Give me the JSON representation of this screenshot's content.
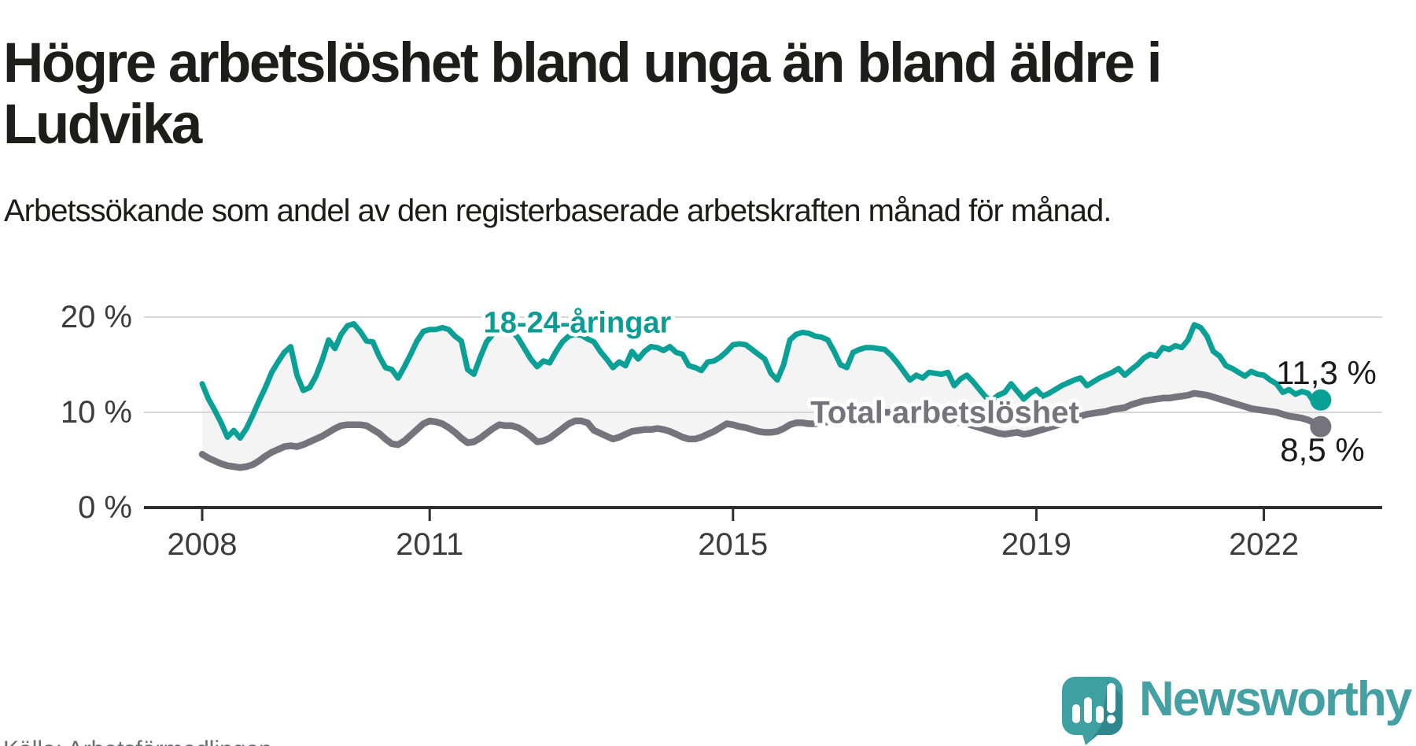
{
  "title": "Högre arbetslöshet bland unga än bland äldre i Ludvika",
  "subtitle": "Arbetssökande som andel av den registerbaserade arbetskraften månad för månad.",
  "source": "Källa: Arbetsförmedlingen",
  "logo": {
    "brand": "Newsworthy",
    "icon": "newsworthy-speech-bubble-bar-chart-icon"
  },
  "colors": {
    "young_line": "#0aa096",
    "young_label": "#0b9d93",
    "total_line": "#75747d",
    "band_fill": "#f4f4f4",
    "gridline": "#d7d7d7",
    "axis": "#2e2e2e",
    "tick_text": "#3c3c3c",
    "text": "#1d1d1b",
    "source_text": "#6c6c75",
    "logo_teal": "#3fa0a1",
    "logo_dark": "#2e878c",
    "wordmark": "#44a0a2"
  },
  "chart_data": {
    "type": "line",
    "title": "Högre arbetslöshet bland unga än bland äldre i Ludvika",
    "subtitle": "Arbetssökande som andel av den registerbaserade arbetskraften månad för månad.",
    "unit": "%",
    "x_start": 2008.0,
    "x_end": 2022.75,
    "x_step_months": 1,
    "xticks": [
      2008,
      2011,
      2015,
      2019,
      2022
    ],
    "yticks": [
      0,
      10,
      20
    ],
    "ytick_labels": [
      "0 %",
      "10 %",
      "20 %"
    ],
    "ylim": [
      0,
      21.5
    ],
    "grid": "horizontal",
    "legend_position": "inline-labels",
    "series": [
      {
        "name": "18-24-åringar",
        "color": "#0aa096",
        "end_label": "11,3 %",
        "end_value": 11.3,
        "values": [
          13.0,
          11.4,
          10.2,
          8.9,
          7.4,
          8.1,
          7.3,
          8.3,
          9.7,
          11.2,
          12.6,
          14.2,
          15.3,
          16.3,
          16.9,
          13.9,
          12.3,
          12.6,
          13.8,
          15.5,
          17.6,
          16.7,
          18.2,
          19.1,
          19.3,
          18.5,
          17.5,
          17.4,
          15.9,
          14.7,
          14.5,
          13.6,
          14.8,
          16.1,
          17.5,
          18.5,
          18.7,
          18.7,
          18.9,
          18.7,
          18.0,
          17.5,
          14.5,
          14.0,
          15.8,
          17.4,
          18.2,
          18.9,
          18.8,
          18.6,
          17.8,
          16.7,
          15.6,
          14.8,
          15.4,
          15.2,
          16.4,
          17.4,
          18.0,
          18.2,
          18.1,
          17.7,
          17.4,
          16.4,
          15.6,
          14.7,
          15.3,
          14.9,
          16.4,
          15.6,
          16.4,
          16.9,
          16.8,
          16.5,
          16.9,
          16.3,
          16.1,
          14.9,
          14.7,
          14.4,
          15.3,
          15.4,
          15.8,
          16.4,
          17.1,
          17.2,
          17.1,
          16.6,
          16.1,
          15.6,
          14.1,
          13.4,
          15.0,
          17.6,
          18.2,
          18.4,
          18.3,
          18.0,
          17.9,
          17.6,
          16.4,
          15.0,
          14.7,
          16.3,
          16.6,
          16.8,
          16.8,
          16.7,
          16.6,
          16.0,
          15.2,
          14.3,
          13.4,
          13.9,
          13.6,
          14.2,
          14.1,
          14.0,
          14.2,
          12.8,
          13.5,
          13.9,
          13.2,
          12.4,
          11.6,
          11.3,
          11.8,
          12.1,
          13.0,
          12.2,
          11.4,
          12.0,
          12.4,
          11.7,
          12.0,
          12.4,
          12.8,
          13.1,
          13.4,
          13.6,
          12.8,
          13.2,
          13.6,
          13.9,
          14.2,
          14.6,
          13.9,
          14.5,
          15.0,
          15.7,
          16.1,
          15.9,
          16.8,
          16.6,
          17.0,
          16.8,
          17.6,
          19.2,
          18.9,
          18.0,
          16.4,
          15.9,
          14.9,
          14.6,
          14.2,
          13.8,
          14.3,
          14.0,
          13.9,
          13.4,
          13.0,
          12.1,
          12.4,
          11.9,
          12.2,
          12.0,
          11.0,
          11.3
        ]
      },
      {
        "name": "Total arbetslöshet",
        "color": "#75747d",
        "end_label": "8,5 %",
        "end_value": 8.5,
        "values": [
          5.6,
          5.2,
          4.9,
          4.6,
          4.4,
          4.3,
          4.2,
          4.3,
          4.5,
          4.9,
          5.4,
          5.8,
          6.1,
          6.4,
          6.5,
          6.4,
          6.6,
          6.9,
          7.2,
          7.5,
          7.9,
          8.3,
          8.6,
          8.7,
          8.7,
          8.7,
          8.6,
          8.2,
          7.8,
          7.2,
          6.7,
          6.6,
          7.0,
          7.6,
          8.2,
          8.8,
          9.1,
          9.0,
          8.8,
          8.4,
          7.9,
          7.3,
          6.8,
          6.9,
          7.3,
          7.8,
          8.3,
          8.7,
          8.6,
          8.6,
          8.4,
          8.0,
          7.5,
          6.9,
          7.0,
          7.3,
          7.8,
          8.3,
          8.8,
          9.1,
          9.1,
          8.9,
          8.1,
          7.8,
          7.5,
          7.2,
          7.4,
          7.7,
          8.0,
          8.1,
          8.2,
          8.2,
          8.3,
          8.2,
          8.0,
          7.7,
          7.4,
          7.2,
          7.2,
          7.4,
          7.7,
          8.0,
          8.4,
          8.8,
          8.7,
          8.5,
          8.4,
          8.2,
          8.0,
          7.9,
          7.9,
          8.0,
          8.3,
          8.7,
          8.9,
          8.9,
          8.8,
          8.8,
          8.9,
          9.0,
          9.2,
          9.4,
          9.5,
          9.6,
          9.7,
          9.8,
          9.9,
          10.0,
          10.0,
          10.0,
          9.9,
          9.8,
          9.6,
          9.5,
          9.4,
          9.4,
          9.3,
          9.2,
          9.1,
          9.0,
          8.9,
          8.8,
          8.6,
          8.4,
          8.2,
          8.0,
          7.8,
          7.7,
          7.8,
          7.9,
          7.7,
          7.8,
          8.0,
          8.2,
          8.4,
          8.6,
          8.8,
          9.1,
          9.4,
          9.6,
          9.8,
          9.9,
          10.0,
          10.1,
          10.3,
          10.4,
          10.5,
          10.8,
          11.0,
          11.2,
          11.3,
          11.4,
          11.5,
          11.5,
          11.6,
          11.7,
          11.8,
          12.0,
          11.9,
          11.8,
          11.6,
          11.4,
          11.2,
          11.0,
          10.8,
          10.6,
          10.4,
          10.3,
          10.2,
          10.1,
          10.0,
          9.8,
          9.6,
          9.5,
          9.4,
          9.2,
          8.9,
          8.5
        ]
      }
    ]
  },
  "annotations": {
    "young_series_label": "18-24-åringar",
    "total_series_label": "Total arbetslöshet",
    "young_end_label": "11,3 %",
    "total_end_label": "8,5 %"
  }
}
